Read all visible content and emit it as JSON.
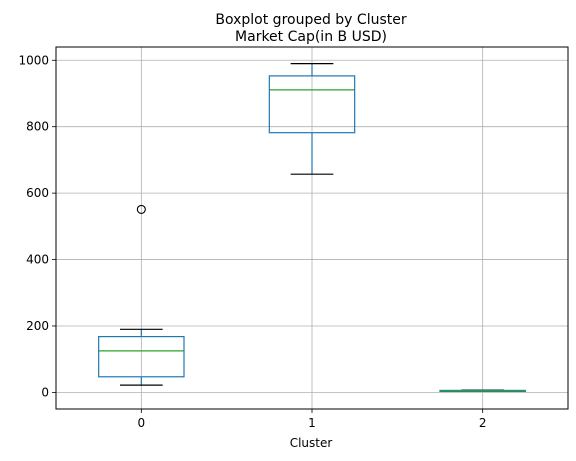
{
  "chart_data": {
    "type": "box",
    "title": "Market Cap(in B USD)",
    "suptitle": "Boxplot grouped by Cluster",
    "xlabel": "Cluster",
    "ylabel": "",
    "categories": [
      "0",
      "1",
      "2"
    ],
    "ylim": [
      -50,
      1040
    ],
    "yticks": [
      0,
      200,
      400,
      600,
      800,
      1000
    ],
    "grid": true,
    "boxes": [
      {
        "category": "0",
        "whisker_low": 22,
        "q1": 47,
        "median": 125,
        "q3": 168,
        "whisker_high": 190,
        "outliers": [
          551
        ]
      },
      {
        "category": "1",
        "whisker_low": 657,
        "q1": 782,
        "median": 911,
        "q3": 953,
        "whisker_high": 990,
        "outliers": []
      },
      {
        "category": "2",
        "whisker_low": 3,
        "q1": 4,
        "median": 5,
        "q3": 6,
        "whisker_high": 7,
        "outliers": []
      }
    ],
    "colors": {
      "box": "#1f77b4",
      "median": "#2ca02c",
      "grid": "#b0b0b0",
      "outlier": "#000000"
    }
  }
}
